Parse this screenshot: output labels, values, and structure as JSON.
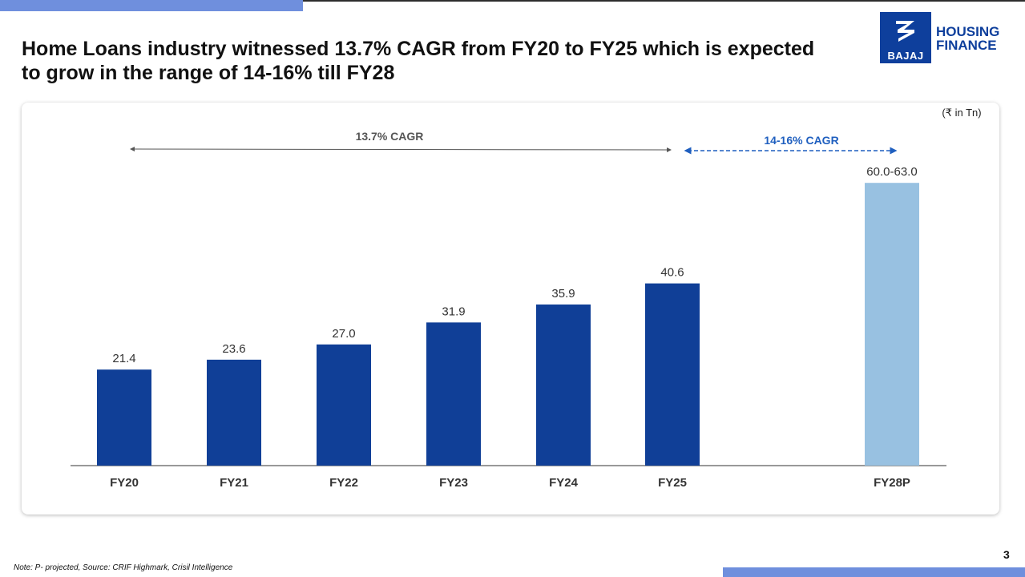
{
  "slide": {
    "title": "Home Loans industry witnessed 13.7% CAGR from FY20 to FY25 which is expected to grow in the range of 14-16% till FY28",
    "logo": {
      "top_text": "HOUSING",
      "bottom_text": "FINANCE",
      "badge_text": "BAJAJ"
    },
    "footnote": "Note: P- projected, Source: CRIF Highmark, Crisil Intelligence",
    "page_number": "3",
    "colors": {
      "accent": "#6f8fdd",
      "brand": "#0e3f9c",
      "bar": "#103f97",
      "projected_bar": "#98c1e1",
      "cagr_projected": "#1f5fbf",
      "cagr_hist": "#555555"
    }
  },
  "chart_data": {
    "type": "bar",
    "unit": "(₹ in Tn)",
    "categories": [
      "FY20",
      "FY21",
      "FY22",
      "FY23",
      "FY24",
      "FY25",
      "FY28P"
    ],
    "values": [
      21.4,
      23.6,
      27.0,
      31.9,
      35.9,
      40.6,
      63.0
    ],
    "data_labels": [
      "21.4",
      "23.6",
      "27.0",
      "31.9",
      "35.9",
      "40.6",
      "60.0-63.0"
    ],
    "projected": [
      false,
      false,
      false,
      false,
      false,
      false,
      true
    ],
    "ylim": [
      0,
      70
    ],
    "grid": false,
    "annotations": [
      {
        "text": "13.7% CAGR",
        "from": "FY20",
        "to": "FY25",
        "style": "solid"
      },
      {
        "text": "14-16% CAGR",
        "from": "FY25",
        "to": "FY28P",
        "style": "dashed"
      }
    ]
  }
}
